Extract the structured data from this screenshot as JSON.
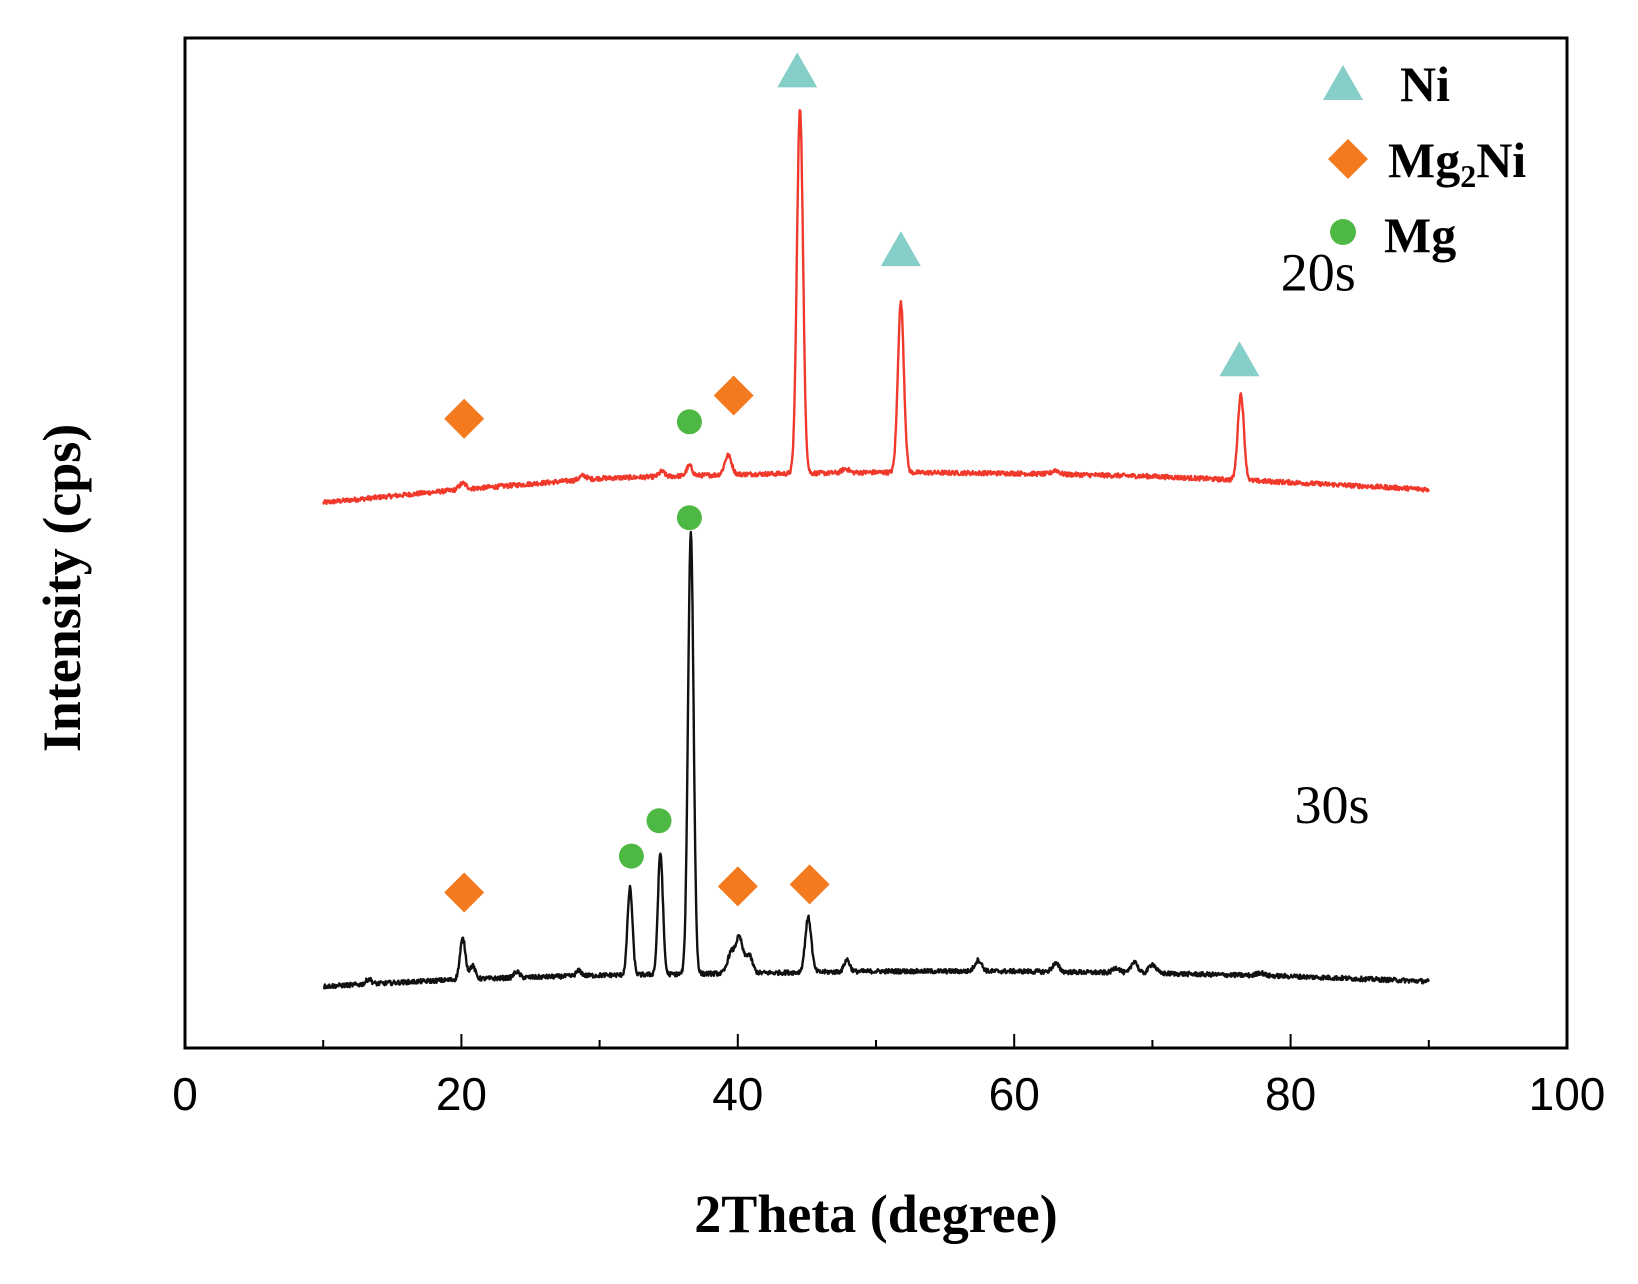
{
  "chart_data": {
    "type": "line",
    "title": "",
    "xlabel": "2Theta (degree)",
    "ylabel": "Intensity (cps)",
    "xlim": [
      0,
      100
    ],
    "ylim": [
      0,
      100
    ],
    "xticks": [
      0,
      20,
      40,
      60,
      80,
      100
    ],
    "xtick_labels": [
      "0",
      "20",
      "40",
      "60",
      "80",
      "100"
    ],
    "grid": false,
    "legend_position": "top-right",
    "legend": [
      {
        "key": "ni",
        "label": "Ni",
        "marker": "triangle",
        "color": "#86CFC9"
      },
      {
        "key": "mg2ni",
        "label_main": "Mg",
        "label_sub": "2",
        "label_tail": "Ni",
        "marker": "diamond",
        "color": "#F47A20"
      },
      {
        "key": "mg",
        "label": "Mg",
        "marker": "circle",
        "color": "#4DB843"
      }
    ],
    "series": [
      {
        "name": "20s",
        "color": "#F0382B",
        "x_range": [
          10,
          90
        ],
        "baseline": [
          [
            10,
            54.0
          ],
          [
            20,
            55.3
          ],
          [
            30,
            56.4
          ],
          [
            40,
            56.8
          ],
          [
            50,
            57.0
          ],
          [
            60,
            56.9
          ],
          [
            70,
            56.6
          ],
          [
            80,
            56.0
          ],
          [
            90,
            55.3
          ]
        ],
        "peaks": [
          {
            "x": 20.1,
            "h": 0.6,
            "w": 0.25
          },
          {
            "x": 28.8,
            "h": 0.4,
            "w": 0.25
          },
          {
            "x": 34.5,
            "h": 0.5,
            "w": 0.2
          },
          {
            "x": 36.5,
            "h": 1.0,
            "w": 0.2
          },
          {
            "x": 39.3,
            "h": 1.9,
            "w": 0.25
          },
          {
            "x": 44.5,
            "h": 36.2,
            "w": 0.22
          },
          {
            "x": 47.8,
            "h": 0.4,
            "w": 0.25
          },
          {
            "x": 51.8,
            "h": 16.8,
            "w": 0.22
          },
          {
            "x": 63.0,
            "h": 0.4,
            "w": 0.25
          },
          {
            "x": 76.4,
            "h": 8.5,
            "w": 0.22
          }
        ],
        "markers": [
          {
            "type": "mg2ni",
            "x": 20.2,
            "y": 62.3
          },
          {
            "type": "mg",
            "x": 36.5,
            "y": 62.0
          },
          {
            "type": "mg2ni",
            "x": 39.7,
            "y": 64.6
          },
          {
            "type": "ni",
            "x": 44.3,
            "y": 96.7
          },
          {
            "type": "ni",
            "x": 51.8,
            "y": 79.0
          },
          {
            "type": "ni",
            "x": 76.3,
            "y": 68.1
          }
        ]
      },
      {
        "name": "30s",
        "color": "#111111",
        "x_range": [
          10,
          90
        ],
        "baseline": [
          [
            10,
            6.1
          ],
          [
            20,
            6.8
          ],
          [
            30,
            7.2
          ],
          [
            40,
            7.4
          ],
          [
            50,
            7.6
          ],
          [
            60,
            7.6
          ],
          [
            70,
            7.4
          ],
          [
            80,
            7.1
          ],
          [
            90,
            6.6
          ]
        ],
        "peaks": [
          {
            "x": 13.3,
            "h": 0.5,
            "w": 0.2
          },
          {
            "x": 20.1,
            "h": 4.0,
            "w": 0.2
          },
          {
            "x": 20.8,
            "h": 1.3,
            "w": 0.2
          },
          {
            "x": 24.0,
            "h": 0.6,
            "w": 0.2
          },
          {
            "x": 28.5,
            "h": 0.5,
            "w": 0.2
          },
          {
            "x": 32.2,
            "h": 8.6,
            "w": 0.18
          },
          {
            "x": 34.4,
            "h": 12.0,
            "w": 0.18
          },
          {
            "x": 36.6,
            "h": 43.8,
            "w": 0.2
          },
          {
            "x": 39.5,
            "h": 2.0,
            "w": 0.25
          },
          {
            "x": 40.1,
            "h": 3.5,
            "w": 0.25
          },
          {
            "x": 40.8,
            "h": 1.8,
            "w": 0.25
          },
          {
            "x": 45.1,
            "h": 5.4,
            "w": 0.22
          },
          {
            "x": 47.9,
            "h": 1.2,
            "w": 0.2
          },
          {
            "x": 57.4,
            "h": 1.1,
            "w": 0.25
          },
          {
            "x": 63.0,
            "h": 0.8,
            "w": 0.25
          },
          {
            "x": 67.4,
            "h": 0.5,
            "w": 0.25
          },
          {
            "x": 68.7,
            "h": 1.2,
            "w": 0.22
          },
          {
            "x": 70.0,
            "h": 0.9,
            "w": 0.25
          },
          {
            "x": 77.8,
            "h": 0.3,
            "w": 0.25
          }
        ],
        "markers": [
          {
            "type": "mg2ni",
            "x": 20.2,
            "y": 15.4
          },
          {
            "type": "mg",
            "x": 32.3,
            "y": 19.0
          },
          {
            "type": "mg",
            "x": 34.3,
            "y": 22.5
          },
          {
            "type": "mg",
            "x": 36.5,
            "y": 52.5
          },
          {
            "type": "mg2ni",
            "x": 40.0,
            "y": 16.0
          },
          {
            "type": "mg2ni",
            "x": 45.2,
            "y": 16.2
          }
        ]
      }
    ],
    "series_labels": [
      {
        "text": "20s",
        "x": 82.0,
        "y": 75.0
      },
      {
        "text": "30s",
        "x": 83.0,
        "y": 22.3
      }
    ]
  }
}
